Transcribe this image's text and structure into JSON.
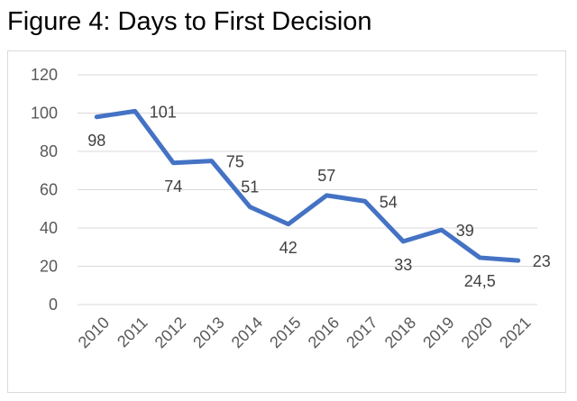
{
  "figure": {
    "title": "Figure 4: Days to First Decision"
  },
  "chart_data": {
    "type": "line",
    "title": "Figure 4: Days to First Decision",
    "xlabel": "",
    "ylabel": "",
    "categories": [
      "2010",
      "2011",
      "2012",
      "2013",
      "2014",
      "2015",
      "2016",
      "2017",
      "2018",
      "2019",
      "2020",
      "2021"
    ],
    "series": [
      {
        "values": [
          98,
          101,
          74,
          75,
          51,
          42,
          57,
          54,
          33,
          39,
          24.5,
          23
        ],
        "labels": [
          "98",
          "101",
          "74",
          "75",
          "51",
          "42",
          "57",
          "54",
          "33",
          "39",
          "24,5",
          "23"
        ],
        "color": "#4472c4"
      }
    ],
    "ylim": [
      0,
      120
    ],
    "yticks": [
      "0",
      "20",
      "40",
      "60",
      "80",
      "100",
      "120"
    ],
    "grid": true,
    "legend": "none",
    "gridColor": "#d9d9d9"
  }
}
